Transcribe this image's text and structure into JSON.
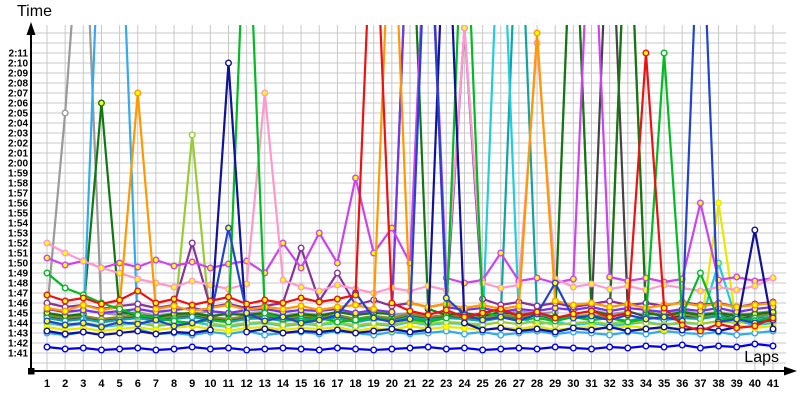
{
  "chart_data": {
    "type": "line",
    "title": "",
    "xlabel": "Laps",
    "ylabel": "Time",
    "x": [
      1,
      2,
      3,
      4,
      5,
      6,
      7,
      8,
      9,
      10,
      11,
      12,
      13,
      14,
      15,
      16,
      17,
      18,
      19,
      20,
      21,
      22,
      23,
      24,
      25,
      26,
      27,
      28,
      29,
      30,
      31,
      32,
      33,
      34,
      35,
      36,
      37,
      38,
      39,
      40,
      41
    ],
    "y_tick_labels": [
      "1:41",
      "1:42",
      "1:43",
      "1:44",
      "1:45",
      "1:46",
      "1:47",
      "1:48",
      "1:49",
      "1:50",
      "1:51",
      "1:52",
      "1:53",
      "1:54",
      "1:55",
      "1:56",
      "1:57",
      "1:58",
      "1:59",
      "2:00",
      "2:01",
      "2:02",
      "2:03",
      "2:04",
      "2:05",
      "2:06",
      "2:07",
      "2:08",
      "2:09",
      "2:10",
      "2:11"
    ],
    "y_tick_seconds_start": 101,
    "ylim_seconds": [
      99.4,
      133.8
    ],
    "grid": true,
    "legend_position": "none",
    "grid_color": "#c8c8c8",
    "off_scale_seconds": 150,
    "series": [
      {
        "name": "gray",
        "color": "#9a9a9a",
        "marker_fill": "#ffffff",
        "values": [
          105.1,
          125.0,
          150,
          105.0,
          104.8,
          105.1,
          104.7,
          105.0,
          104.9,
          105.2,
          104.8,
          105.0,
          105.1,
          104.7,
          105.0,
          104.8,
          105.1,
          104.9,
          105.2,
          104.8,
          105.0,
          104.9,
          105.1,
          104.7,
          105.0,
          104.8,
          105.2,
          104.9,
          105.1,
          150,
          105.3,
          104.9,
          105.1,
          104.8,
          105.0,
          105.2,
          104.9,
          105.1,
          104.8,
          105.0,
          105.2
        ]
      },
      {
        "name": "dark-gray",
        "color": "#444444",
        "marker_fill": "#ffffff",
        "values": [
          104.7,
          104.4,
          104.6,
          104.3,
          104.5,
          104.7,
          104.4,
          104.6,
          104.8,
          104.5,
          104.3,
          104.6,
          104.7,
          104.4,
          104.6,
          104.5,
          104.7,
          104.3,
          104.6,
          104.4,
          104.8,
          104.5,
          104.7,
          104.6,
          104.4,
          104.7,
          104.5,
          104.8,
          104.4,
          104.6,
          104.7,
          150,
          105.2,
          104.6,
          104.4,
          104.7,
          104.5,
          104.8,
          104.4,
          104.7,
          104.9
        ]
      },
      {
        "name": "olive",
        "color": "#8b8b2e",
        "marker_fill": "#ffff00",
        "values": [
          104.8,
          104.5,
          104.7,
          104.4,
          104.6,
          104.8,
          104.5,
          104.7,
          104.9,
          104.6,
          104.4,
          104.7,
          104.8,
          104.5,
          104.7,
          104.6,
          104.8,
          104.4,
          104.7,
          104.5,
          104.9,
          104.6,
          104.8,
          104.7,
          104.5,
          104.8,
          104.6,
          104.9,
          104.5,
          104.7,
          104.8,
          104.6,
          150,
          105.2,
          104.7,
          104.9,
          104.6,
          104.8,
          105.0,
          104.7,
          104.9
        ]
      },
      {
        "name": "dark-green",
        "color": "#117711",
        "marker_fill": "#ffff00",
        "values": [
          105.0,
          104.7,
          104.9,
          126.0,
          105.1,
          104.8,
          104.6,
          104.9,
          105.0,
          104.7,
          104.9,
          104.8,
          105.0,
          104.6,
          104.9,
          104.7,
          105.1,
          104.8,
          105.0,
          104.9,
          150,
          105.4,
          104.8,
          105.0,
          104.7,
          105.1,
          104.8,
          105.0,
          104.6,
          150,
          105.2,
          104.8,
          150,
          105.0,
          104.7,
          105.1,
          104.8,
          105.0,
          104.7,
          104.9,
          105.1
        ]
      },
      {
        "name": "teal",
        "color": "#11a3a3",
        "marker_fill": "#ffffff",
        "values": [
          104.5,
          104.2,
          104.4,
          104.1,
          104.3,
          104.5,
          104.2,
          104.4,
          104.6,
          104.3,
          104.1,
          104.4,
          104.5,
          104.2,
          104.4,
          104.3,
          104.5,
          104.1,
          104.4,
          104.2,
          104.6,
          104.3,
          104.5,
          104.4,
          104.2,
          104.5,
          150,
          105.0,
          104.4,
          104.6,
          104.3,
          104.5,
          104.2,
          104.6,
          104.3,
          104.5,
          104.4,
          104.7,
          104.3,
          104.5,
          104.6
        ]
      },
      {
        "name": "cyan",
        "color": "#22ccdd",
        "marker_fill": "#ffff00",
        "values": [
          104.0,
          103.7,
          103.9,
          103.6,
          103.8,
          104.0,
          103.7,
          103.9,
          104.1,
          103.8,
          103.6,
          103.9,
          104.0,
          103.7,
          103.9,
          103.8,
          104.0,
          103.6,
          103.9,
          103.7,
          104.1,
          103.8,
          104.0,
          103.9,
          103.7,
          150,
          104.5,
          103.9,
          104.1,
          103.8,
          104.0,
          103.7,
          103.9,
          104.1,
          103.8,
          104.0,
          103.9,
          110.0,
          104.2,
          103.8,
          104.0
        ]
      },
      {
        "name": "sky-blue",
        "color": "#33aaee",
        "marker_fill": "#ffffff",
        "values": [
          103.0,
          102.8,
          103.1,
          150,
          150,
          103.4,
          102.9,
          103.0,
          102.8,
          103.1,
          102.9,
          103.2,
          102.8,
          103.0,
          103.1,
          102.9,
          103.2,
          103.0,
          102.8,
          103.1,
          102.9,
          103.0,
          103.2,
          102.9,
          103.1,
          102.8,
          103.0,
          103.2,
          102.9,
          103.1,
          103.0,
          102.8,
          103.1,
          102.9,
          103.2,
          103.0,
          102.9,
          103.1,
          102.8,
          103.0,
          103.2
        ]
      },
      {
        "name": "yellow-green",
        "color": "#99cc33",
        "marker_fill": "#ffffff",
        "values": [
          104.1,
          103.8,
          104.0,
          103.7,
          103.9,
          104.1,
          103.8,
          104.0,
          122.8,
          103.9,
          103.7,
          104.0,
          104.1,
          103.8,
          104.0,
          103.9,
          104.1,
          103.7,
          104.0,
          103.8,
          104.2,
          103.9,
          104.1,
          104.0,
          103.8,
          104.1,
          103.9,
          104.2,
          103.8,
          104.0,
          104.1,
          103.9,
          104.2,
          104.0,
          103.8,
          104.1,
          103.9,
          104.2,
          104.0,
          104.3,
          104.1
        ]
      },
      {
        "name": "yellow",
        "color": "#e8e800",
        "marker_fill": "#ffff00",
        "values": [
          103.6,
          103.3,
          103.5,
          103.2,
          103.4,
          103.6,
          103.3,
          103.5,
          103.7,
          103.4,
          103.2,
          103.5,
          103.6,
          103.3,
          103.5,
          103.4,
          103.6,
          103.2,
          103.5,
          103.3,
          103.7,
          103.4,
          103.6,
          103.5,
          103.3,
          103.6,
          103.4,
          103.7,
          103.3,
          103.5,
          103.6,
          103.4,
          103.7,
          103.5,
          103.3,
          103.6,
          103.4,
          116.0,
          103.8,
          103.5,
          103.7
        ]
      },
      {
        "name": "violet",
        "color": "#7733ee",
        "marker_fill": "#ffff00",
        "values": [
          105.4,
          105.1,
          105.3,
          105.0,
          105.2,
          105.4,
          105.1,
          105.3,
          105.5,
          105.2,
          105.0,
          105.3,
          105.4,
          105.1,
          105.3,
          105.2,
          105.4,
          105.0,
          105.3,
          105.1,
          150,
          150,
          105.6,
          105.3,
          105.5,
          105.1,
          105.4,
          105.2,
          105.5,
          105.3,
          105.6,
          105.2,
          105.5,
          105.3,
          105.1,
          105.4,
          105.2,
          105.5,
          105.1,
          105.4,
          105.6
        ]
      },
      {
        "name": "purple",
        "color": "#883399",
        "marker_fill": "#ffffff",
        "values": [
          106.0,
          105.6,
          105.8,
          105.4,
          105.7,
          105.9,
          105.5,
          105.8,
          112.0,
          105.6,
          105.9,
          105.5,
          105.7,
          106.0,
          111.5,
          106.2,
          109.0,
          105.8,
          106.3,
          105.7,
          106.0,
          105.6,
          105.9,
          133.5,
          106.4,
          105.8,
          106.1,
          105.7,
          106.0,
          105.6,
          105.9,
          106.2,
          105.8,
          106.0,
          105.7,
          106.1,
          105.8,
          106.0,
          105.6,
          105.9,
          106.1
        ]
      },
      {
        "name": "magenta",
        "color": "#cc44ee",
        "marker_fill": "#ffff00",
        "values": [
          110.5,
          109.8,
          110.2,
          109.5,
          110.0,
          109.6,
          110.3,
          109.7,
          110.1,
          109.5,
          109.9,
          110.2,
          109.0,
          112.0,
          109.5,
          113.0,
          110.0,
          118.5,
          111.0,
          113.5,
          110.0,
          150,
          108.5,
          108.0,
          108.3,
          111.0,
          108.2,
          108.5,
          108.0,
          108.4,
          150,
          108.6,
          108.2,
          108.5,
          108.1,
          108.4,
          116.0,
          108.3,
          108.6,
          108.2,
          108.5
        ]
      },
      {
        "name": "pink",
        "color": "#ff99cc",
        "marker_fill": "#ffff00",
        "values": [
          112.0,
          111.0,
          110.2,
          109.5,
          109.0,
          108.4,
          108.0,
          107.6,
          108.2,
          107.8,
          107.4,
          107.9,
          127.0,
          108.3,
          107.6,
          107.2,
          107.8,
          107.4,
          107.0,
          107.5,
          107.2,
          107.7,
          107.3,
          133.5,
          108.0,
          107.5,
          107.8,
          132.0,
          108.4,
          107.6,
          107.9,
          107.4,
          107.7,
          107.3,
          107.8,
          107.5,
          107.2,
          107.6,
          107.3,
          107.7,
          108.5
        ]
      },
      {
        "name": "orange",
        "color": "#ff9900",
        "marker_fill": "#ffff00",
        "values": [
          105.5,
          105.2,
          105.8,
          105.3,
          105.6,
          127.0,
          105.4,
          105.7,
          105.2,
          105.5,
          105.8,
          105.3,
          105.6,
          105.4,
          105.7,
          105.3,
          105.6,
          105.8,
          105.4,
          150,
          106.0,
          105.6,
          105.9,
          105.5,
          105.8,
          105.4,
          105.7,
          133.0,
          106.2,
          105.8,
          106.0,
          105.6,
          105.9,
          105.5,
          105.8,
          106.0,
          105.7,
          105.9,
          105.6,
          105.8,
          106.0
        ]
      },
      {
        "name": "green",
        "color": "#00bb22",
        "marker_fill": "#ffffff",
        "values": [
          109.0,
          107.5,
          106.8,
          106.0,
          105.4,
          104.8,
          104.5,
          104.2,
          104.0,
          104.3,
          104.1,
          150,
          105.0,
          104.4,
          104.2,
          104.5,
          104.1,
          104.3,
          104.6,
          104.2,
          104.4,
          104.1,
          104.5,
          150,
          105.2,
          104.6,
          104.3,
          104.5,
          104.2,
          104.6,
          104.3,
          104.5,
          104.1,
          104.4,
          131.0,
          104.8,
          109.0,
          104.3,
          104.6,
          104.2,
          104.5
        ]
      },
      {
        "name": "navy",
        "color": "#111199",
        "marker_fill": "#ffffff",
        "values": [
          103.2,
          102.9,
          103.1,
          102.8,
          103.0,
          103.2,
          102.9,
          103.1,
          103.0,
          103.3,
          130.0,
          103.1,
          103.4,
          103.0,
          103.2,
          103.1,
          103.3,
          103.0,
          103.2,
          103.4,
          103.1,
          103.3,
          150,
          104.0,
          103.3,
          103.5,
          103.2,
          103.4,
          103.1,
          103.5,
          103.3,
          103.6,
          103.2,
          103.4,
          103.6,
          103.3,
          103.5,
          103.2,
          103.6,
          113.3,
          103.4
        ]
      },
      {
        "name": "royal-blue",
        "color": "#2244cc",
        "marker_fill": "#ffff00",
        "values": [
          104.2,
          103.8,
          104.0,
          103.6,
          104.1,
          103.9,
          104.3,
          103.7,
          104.0,
          104.5,
          113.5,
          105.0,
          104.2,
          104.6,
          104.0,
          104.3,
          104.8,
          107.0,
          104.5,
          104.1,
          104.4,
          150,
          106.5,
          104.8,
          104.3,
          104.6,
          104.2,
          104.9,
          108.0,
          104.5,
          104.7,
          104.3,
          104.8,
          104.4,
          104.6,
          104.2,
          150,
          104.1,
          104.4,
          104.0,
          104.3
        ]
      },
      {
        "name": "red",
        "color": "#ee1111",
        "marker_fill": "#ffff00",
        "values": [
          106.8,
          106.2,
          106.5,
          105.9,
          106.3,
          107.2,
          106.0,
          106.4,
          105.8,
          106.2,
          106.6,
          105.9,
          106.3,
          106.0,
          106.5,
          106.1,
          106.4,
          106.8,
          150,
          106.0,
          105.2,
          104.8,
          105.3,
          104.6,
          105.0,
          105.4,
          104.7,
          105.1,
          104.5,
          104.9,
          105.2,
          104.6,
          105.0,
          131.0,
          105.5,
          103.8,
          103.2,
          103.9,
          103.5,
          103.7,
          104.5
        ]
      },
      {
        "name": "blue",
        "color": "#0000ee",
        "marker_fill": "#ffffff",
        "values": [
          101.6,
          101.4,
          101.5,
          101.3,
          101.4,
          101.5,
          101.3,
          101.4,
          101.6,
          101.4,
          101.5,
          101.3,
          101.4,
          101.5,
          101.4,
          101.3,
          101.5,
          101.4,
          101.3,
          101.4,
          101.5,
          101.6,
          101.4,
          101.5,
          101.3,
          101.4,
          101.5,
          101.4,
          101.6,
          101.5,
          101.4,
          101.6,
          101.5,
          101.7,
          101.6,
          101.8,
          101.5,
          101.7,
          101.6,
          101.9,
          101.7
        ]
      }
    ]
  }
}
